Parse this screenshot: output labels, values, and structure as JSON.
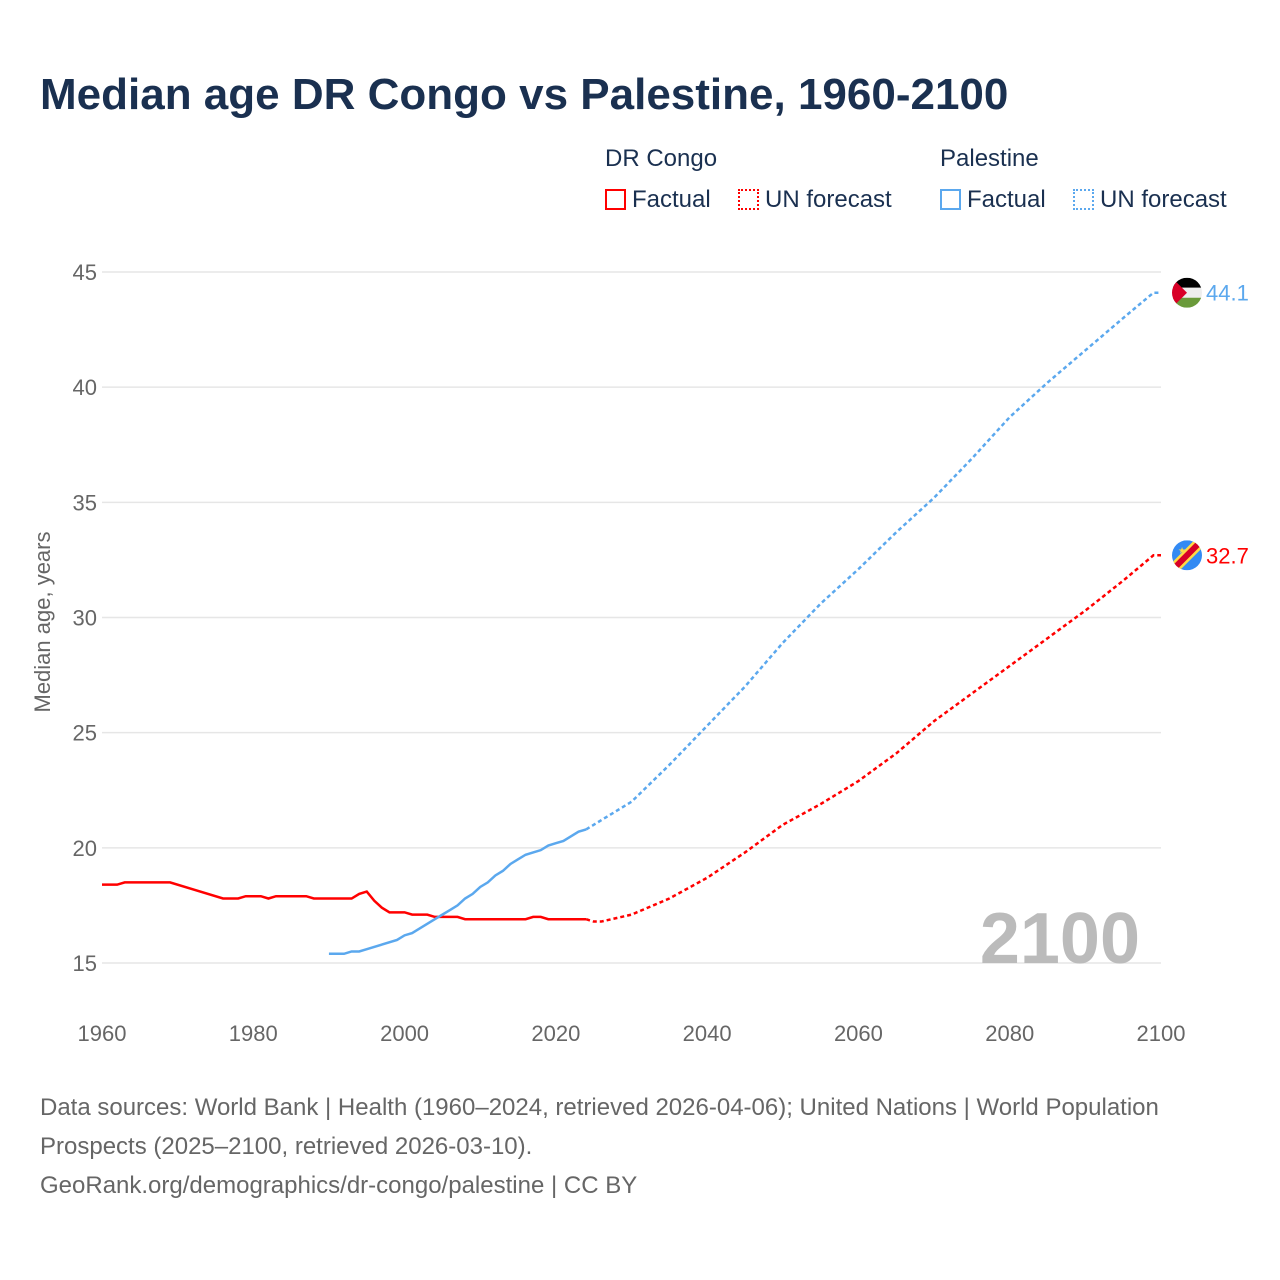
{
  "title": "Median age DR Congo vs Palestine, 1960-2100",
  "legend": {
    "congo": "DR Congo",
    "palestine": "Palestine",
    "factual": "Factual",
    "forecast": "UN forecast"
  },
  "colors": {
    "congo": "#ff0000",
    "palestine": "#5ba8ee"
  },
  "source_line1": "Data sources: World Bank | Health (1960–2024, retrieved 2026-04-06); United Nations | World Population Prospects (2025–2100, retrieved 2026-03-10).",
  "source_line2": "GeoRank.org/demographics/dr-congo/palestine | CC BY",
  "chart_data": {
    "type": "line",
    "title": "Median age DR Congo vs Palestine, 1960-2100",
    "xlabel": "",
    "ylabel": "Median age, years",
    "xlim": [
      1960,
      2100
    ],
    "ylim": [
      15,
      45
    ],
    "xticks": [
      1960,
      1980,
      2000,
      2020,
      2040,
      2060,
      2080,
      2100
    ],
    "yticks": [
      15,
      20,
      25,
      30,
      35,
      40,
      45
    ],
    "year_watermark": "2100",
    "series": [
      {
        "name": "DR Congo",
        "kind": "factual",
        "country": "congo",
        "points": [
          [
            1960,
            18.4
          ],
          [
            1962,
            18.4
          ],
          [
            1963,
            18.5
          ],
          [
            1969,
            18.5
          ],
          [
            1976,
            17.8
          ],
          [
            1978,
            17.8
          ],
          [
            1979,
            17.9
          ],
          [
            1981,
            17.9
          ],
          [
            1982,
            17.8
          ],
          [
            1983,
            17.9
          ],
          [
            1987,
            17.9
          ],
          [
            1988,
            17.8
          ],
          [
            1993,
            17.8
          ],
          [
            1994,
            18.0
          ],
          [
            1995,
            18.1
          ],
          [
            1996,
            17.7
          ],
          [
            1997,
            17.4
          ],
          [
            1998,
            17.2
          ],
          [
            2000,
            17.2
          ],
          [
            2001,
            17.1
          ],
          [
            2003,
            17.1
          ],
          [
            2004,
            17.0
          ],
          [
            2007,
            17.0
          ],
          [
            2008,
            16.9
          ],
          [
            2016,
            16.9
          ],
          [
            2017,
            17.0
          ],
          [
            2018,
            17.0
          ],
          [
            2019,
            16.9
          ],
          [
            2024,
            16.9
          ]
        ]
      },
      {
        "name": "DR Congo",
        "kind": "forecast",
        "country": "congo",
        "points": [
          [
            2024,
            16.9
          ],
          [
            2025,
            16.8
          ],
          [
            2026,
            16.8
          ],
          [
            2030,
            17.1
          ],
          [
            2035,
            17.8
          ],
          [
            2040,
            18.7
          ],
          [
            2045,
            19.8
          ],
          [
            2050,
            21.0
          ],
          [
            2055,
            21.9
          ],
          [
            2060,
            22.9
          ],
          [
            2065,
            24.1
          ],
          [
            2070,
            25.5
          ],
          [
            2075,
            26.7
          ],
          [
            2080,
            27.9
          ],
          [
            2085,
            29.1
          ],
          [
            2090,
            30.3
          ],
          [
            2095,
            31.6
          ],
          [
            2099,
            32.7
          ],
          [
            2100,
            32.7
          ]
        ],
        "end_label": "32.7"
      },
      {
        "name": "Palestine",
        "kind": "factual",
        "country": "palestine",
        "points": [
          [
            1990,
            15.4
          ],
          [
            1992,
            15.4
          ],
          [
            1993,
            15.5
          ],
          [
            1994,
            15.5
          ],
          [
            1995,
            15.6
          ],
          [
            1999,
            16.0
          ],
          [
            2000,
            16.2
          ],
          [
            2001,
            16.3
          ],
          [
            2002,
            16.5
          ],
          [
            2003,
            16.7
          ],
          [
            2004,
            16.9
          ],
          [
            2005,
            17.1
          ],
          [
            2006,
            17.3
          ],
          [
            2007,
            17.5
          ],
          [
            2008,
            17.8
          ],
          [
            2009,
            18.0
          ],
          [
            2010,
            18.3
          ],
          [
            2011,
            18.5
          ],
          [
            2012,
            18.8
          ],
          [
            2013,
            19.0
          ],
          [
            2014,
            19.3
          ],
          [
            2015,
            19.5
          ],
          [
            2016,
            19.7
          ],
          [
            2017,
            19.8
          ],
          [
            2018,
            19.9
          ],
          [
            2019,
            20.1
          ],
          [
            2020,
            20.2
          ],
          [
            2021,
            20.3
          ],
          [
            2022,
            20.5
          ],
          [
            2023,
            20.7
          ],
          [
            2024,
            20.8
          ]
        ]
      },
      {
        "name": "Palestine",
        "kind": "forecast",
        "country": "palestine",
        "points": [
          [
            2024,
            20.8
          ],
          [
            2025,
            21.0
          ],
          [
            2030,
            22.0
          ],
          [
            2035,
            23.6
          ],
          [
            2040,
            25.3
          ],
          [
            2045,
            27.0
          ],
          [
            2050,
            28.9
          ],
          [
            2055,
            30.6
          ],
          [
            2060,
            32.1
          ],
          [
            2065,
            33.7
          ],
          [
            2070,
            35.2
          ],
          [
            2075,
            36.9
          ],
          [
            2080,
            38.7
          ],
          [
            2085,
            40.2
          ],
          [
            2090,
            41.6
          ],
          [
            2095,
            43.0
          ],
          [
            2099,
            44.1
          ],
          [
            2100,
            44.1
          ]
        ],
        "end_label": "44.1"
      }
    ]
  }
}
